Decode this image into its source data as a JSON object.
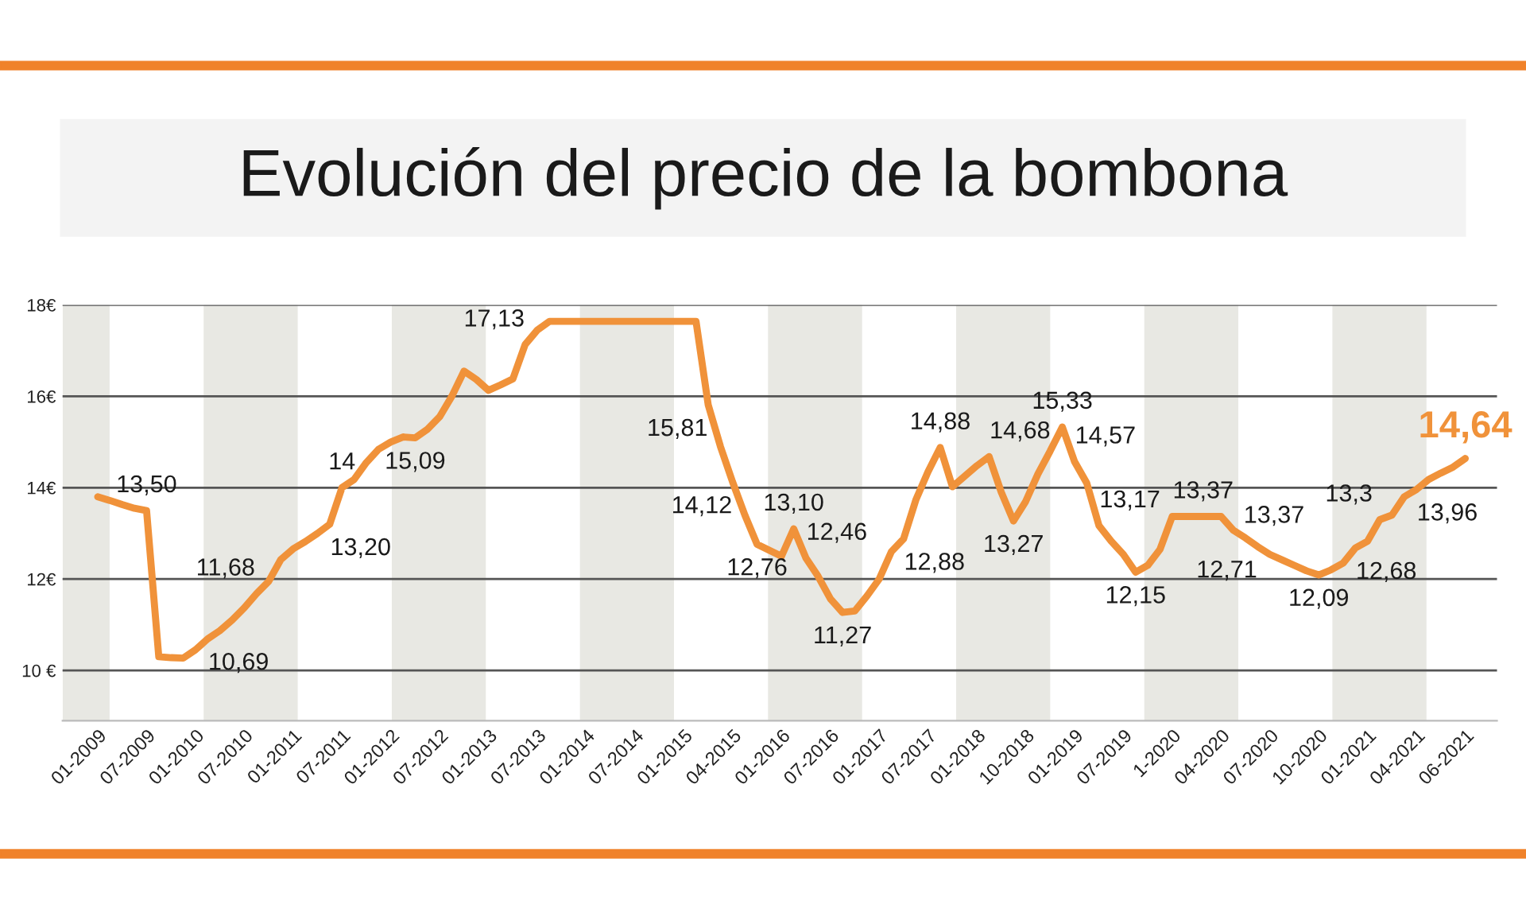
{
  "chart_data": {
    "type": "line",
    "title": "Evolución del precio de la bombona",
    "categories": [
      "01-2009",
      null,
      null,
      null,
      "07-2009",
      null,
      null,
      null,
      "01-2010",
      null,
      null,
      null,
      "07-2010",
      null,
      null,
      null,
      "01-2011",
      null,
      null,
      null,
      "07-2011",
      null,
      null,
      null,
      "01-2012",
      null,
      null,
      null,
      "07-2012",
      null,
      null,
      null,
      "01-2013",
      null,
      null,
      null,
      "07-2013",
      null,
      null,
      null,
      "01-2014",
      null,
      null,
      null,
      "07-2014",
      null,
      null,
      null,
      "01-2015",
      null,
      null,
      null,
      "04-2015",
      null,
      null,
      null,
      "01-2016",
      null,
      null,
      null,
      "07-2016",
      null,
      null,
      null,
      "01-2017",
      null,
      null,
      null,
      "07-2017",
      null,
      null,
      null,
      "01-2018",
      null,
      null,
      null,
      "10-2018",
      null,
      null,
      null,
      "01-2019",
      null,
      null,
      null,
      "07-2019",
      null,
      null,
      null,
      "1-2020",
      null,
      null,
      null,
      "04-2020",
      null,
      null,
      null,
      "07-2020",
      null,
      null,
      null,
      "10-2020",
      null,
      null,
      null,
      "01-2021",
      null,
      null,
      null,
      "04-2021",
      null,
      null,
      null,
      "06-2021"
    ],
    "series": [
      {
        "color": "#f0923a",
        "values": [
          13.8,
          13.72,
          13.63,
          13.55,
          13.5,
          10.3,
          10.28,
          10.27,
          10.45,
          10.69,
          10.87,
          11.1,
          11.37,
          11.68,
          11.95,
          12.43,
          12.66,
          12.82,
          13.0,
          13.2,
          14.0,
          14.18,
          14.55,
          14.84,
          15.0,
          15.11,
          15.09,
          15.28,
          15.55,
          16.0,
          16.55,
          16.37,
          16.13,
          16.25,
          16.38,
          17.13,
          17.45,
          17.64,
          17.64,
          17.64,
          17.64,
          17.64,
          17.64,
          17.64,
          17.64,
          17.64,
          17.64,
          17.64,
          17.64,
          17.64,
          15.81,
          14.9,
          14.12,
          13.4,
          12.76,
          12.63,
          12.5,
          13.1,
          12.46,
          12.06,
          11.57,
          11.27,
          11.3,
          11.63,
          12.0,
          12.6,
          12.88,
          13.73,
          14.35,
          14.88,
          14.02,
          14.25,
          14.48,
          14.68,
          13.9,
          13.27,
          13.7,
          14.3,
          14.8,
          15.33,
          14.57,
          14.1,
          13.17,
          12.83,
          12.54,
          12.15,
          12.3,
          12.65,
          13.37,
          13.37,
          13.37,
          13.37,
          13.37,
          13.07,
          12.9,
          12.71,
          12.54,
          12.42,
          12.3,
          12.18,
          12.09,
          12.2,
          12.35,
          12.68,
          12.83,
          13.3,
          13.4,
          13.8,
          13.96,
          14.18,
          14.32,
          14.45,
          14.64
        ],
        "value_labels": [
          null,
          null,
          null,
          null,
          "13,50",
          null,
          null,
          null,
          null,
          "10,69",
          null,
          null,
          null,
          "11,68",
          null,
          null,
          null,
          null,
          null,
          "13,20",
          "14",
          null,
          null,
          null,
          null,
          null,
          "15,09",
          null,
          null,
          null,
          null,
          null,
          null,
          null,
          null,
          "17,13",
          null,
          null,
          null,
          null,
          null,
          null,
          null,
          null,
          null,
          null,
          null,
          null,
          null,
          null,
          "15,81",
          null,
          "14,12",
          null,
          "12,76",
          null,
          null,
          "13,10",
          "12,46",
          null,
          null,
          "11,27",
          null,
          null,
          null,
          null,
          "12,88",
          null,
          null,
          "14,88",
          null,
          null,
          null,
          "14,68",
          null,
          "13,27",
          null,
          null,
          null,
          "15,33",
          "14,57",
          null,
          "13,17",
          null,
          null,
          "12,15",
          null,
          null,
          "13,37",
          null,
          null,
          null,
          "13,37",
          null,
          null,
          "12,71",
          null,
          null,
          null,
          null,
          "12,09",
          null,
          null,
          "12,68",
          null,
          "13,3",
          null,
          null,
          "13,96",
          null,
          null,
          null,
          "14,64"
        ]
      }
    ],
    "ylim": [
      8.9,
      18
    ],
    "yticks": [
      {
        "value": 10,
        "label": "10 €"
      },
      {
        "value": 12,
        "label": "12€"
      },
      {
        "value": 14,
        "label": "14€"
      },
      {
        "value": 16,
        "label": "16€"
      },
      {
        "value": 18,
        "label": "18€"
      }
    ],
    "grid": "y",
    "marker": "none",
    "line_style": "solid"
  }
}
